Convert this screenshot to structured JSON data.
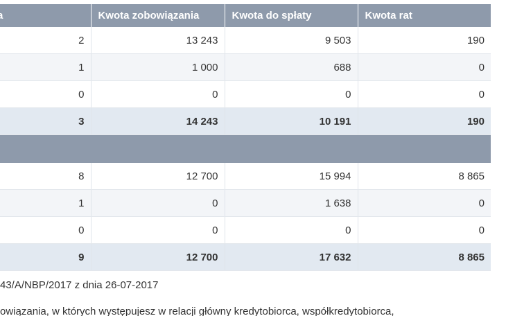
{
  "table": {
    "headers": [
      "a",
      "Kwota zobowiązania",
      "Kwota do spłaty",
      "Kwota rat"
    ],
    "section1": {
      "rows": [
        [
          "2",
          "13 243",
          "9 503",
          "190"
        ],
        [
          "1",
          "1 000",
          "688",
          "0"
        ],
        [
          "0",
          "0",
          "0",
          "0"
        ]
      ],
      "total": [
        "3",
        "14 243",
        "10 191",
        "190"
      ]
    },
    "section_header": "",
    "section2": {
      "rows": [
        [
          "8",
          "12 700",
          "15 994",
          "8 865"
        ],
        [
          "1",
          "0",
          "1 638",
          "0"
        ],
        [
          "0",
          "0",
          "0",
          "0"
        ]
      ],
      "total": [
        "9",
        "12 700",
        "17 632",
        "8 865"
      ]
    }
  },
  "footer": {
    "reference": "43/A/NBP/2017 z dnia 26-07-2017",
    "note": "owiązania, w których występujesz w relacji główny kredytobiorca, współkredytobiorca,"
  }
}
